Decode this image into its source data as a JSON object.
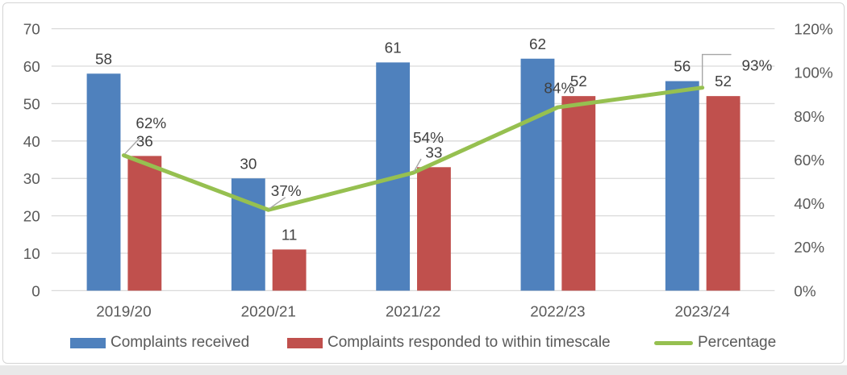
{
  "chart_data": {
    "type": "bar",
    "subtype": "clustered-bar-with-secondary-axis-line",
    "categories": [
      "2019/20",
      "2020/21",
      "2021/22",
      "2022/23",
      "2023/24"
    ],
    "series": [
      {
        "name": "Complaints received",
        "type": "bar",
        "axis": "primary",
        "color": "#4F81BD",
        "values": [
          58,
          30,
          61,
          62,
          56
        ]
      },
      {
        "name": "Complaints responded to within timescale",
        "type": "bar",
        "axis": "primary",
        "color": "#C0504D",
        "values": [
          36,
          11,
          33,
          52,
          52
        ]
      },
      {
        "name": "Percentage",
        "type": "line",
        "axis": "secondary",
        "color": "#96C050",
        "values": [
          62,
          37,
          54,
          84,
          93
        ],
        "labels": [
          "62%",
          "37%",
          "54%",
          "84%",
          "93%"
        ]
      }
    ],
    "title": "",
    "xlabel": "",
    "ylabel": "",
    "left_axis": {
      "min": 0,
      "max": 70,
      "step": 10,
      "ticks": [
        "0",
        "10",
        "20",
        "30",
        "40",
        "50",
        "60",
        "70"
      ]
    },
    "right_axis": {
      "min": 0,
      "max": 120,
      "step": 20,
      "ticks": [
        "0%",
        "20%",
        "40%",
        "60%",
        "80%",
        "100%",
        "120%"
      ]
    },
    "grid": true,
    "legend_position": "bottom"
  },
  "colors": {
    "bar_blue": "#4F81BD",
    "bar_red": "#C0504D",
    "line_green": "#96C050",
    "gridline": "#D9D9D9",
    "axis_text": "#595959",
    "data_label_text": "#404040",
    "leader_line": "#A6A6A6",
    "frame_border": "#D4D4D4"
  },
  "legend": {
    "items": [
      {
        "label": "Complaints received",
        "swatch": "blue-rect"
      },
      {
        "label": "Complaints responded to within timescale",
        "swatch": "red-rect"
      },
      {
        "label": "Percentage",
        "swatch": "green-line"
      }
    ]
  }
}
